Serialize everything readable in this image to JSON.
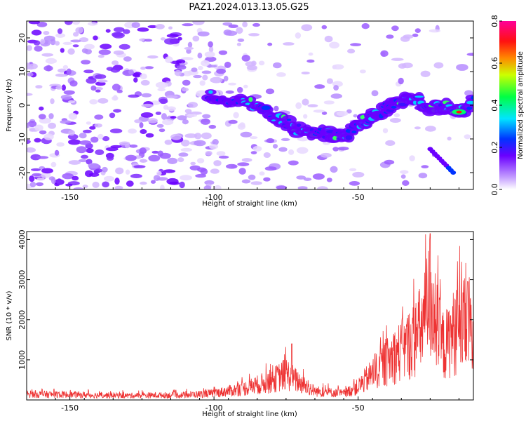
{
  "title": "PAZ1.2024.013.13.05.G25",
  "chart_data": [
    {
      "type": "heatmap",
      "xlabel": "Height of straight line (km)",
      "ylabel": "Frequency (Hz)",
      "xlim": [
        -165,
        -10
      ],
      "ylim": [
        -25,
        25
      ],
      "xticks": [
        -150,
        -100,
        -50
      ],
      "yticks": [
        -20,
        -10,
        0,
        10,
        20
      ],
      "colorbar": {
        "label": "Normalized spectral amplitude",
        "range": [
          0.0,
          0.8
        ],
        "ticks": [
          "0.0",
          "0.2",
          "0.4",
          "0.6",
          "0.8"
        ]
      },
      "ridge": [
        {
          "x": -102,
          "y": 3
        },
        {
          "x": -95,
          "y": 2
        },
        {
          "x": -88,
          "y": 1
        },
        {
          "x": -82,
          "y": -2
        },
        {
          "x": -77,
          "y": -4
        },
        {
          "x": -72,
          "y": -7
        },
        {
          "x": -66,
          "y": -8
        },
        {
          "x": -60,
          "y": -8
        },
        {
          "x": -55,
          "y": -10
        },
        {
          "x": -50,
          "y": -6
        },
        {
          "x": -45,
          "y": -3
        },
        {
          "x": -40,
          "y": -1
        },
        {
          "x": -35,
          "y": 1
        },
        {
          "x": -30,
          "y": 2
        },
        {
          "x": -25,
          "y": -1
        },
        {
          "x": -20,
          "y": 0
        },
        {
          "x": -15,
          "y": -2
        },
        {
          "x": -10,
          "y": 1
        }
      ]
    },
    {
      "type": "line",
      "xlabel": "Height of straight line (km)",
      "ylabel": "SNR (10 * v/v)",
      "xlim": [
        -165,
        -10
      ],
      "ylim": [
        0,
        4200
      ],
      "xticks": [
        -150,
        -100,
        -50
      ],
      "yticks": [
        1000,
        2000,
        3000,
        4000
      ],
      "color": "#ee3333",
      "envelope": [
        {
          "x": -165,
          "y": 200
        },
        {
          "x": -150,
          "y": 180
        },
        {
          "x": -130,
          "y": 150
        },
        {
          "x": -110,
          "y": 170
        },
        {
          "x": -100,
          "y": 230
        },
        {
          "x": -90,
          "y": 380
        },
        {
          "x": -80,
          "y": 650
        },
        {
          "x": -75,
          "y": 900
        },
        {
          "x": -72,
          "y": 700
        },
        {
          "x": -65,
          "y": 300
        },
        {
          "x": -55,
          "y": 220
        },
        {
          "x": -50,
          "y": 450
        },
        {
          "x": -45,
          "y": 900
        },
        {
          "x": -40,
          "y": 1300
        },
        {
          "x": -35,
          "y": 1700
        },
        {
          "x": -30,
          "y": 2100
        },
        {
          "x": -27,
          "y": 2700
        },
        {
          "x": -25,
          "y": 3600
        },
        {
          "x": -22,
          "y": 2200
        },
        {
          "x": -20,
          "y": 1800
        },
        {
          "x": -17,
          "y": 2300
        },
        {
          "x": -14,
          "y": 2500
        },
        {
          "x": -11,
          "y": 2600
        },
        {
          "x": -10,
          "y": 1500
        }
      ],
      "peaks": [
        {
          "x": -25,
          "y": 4150
        },
        {
          "x": -12,
          "y": 2950
        },
        {
          "x": -73,
          "y": 1400
        }
      ]
    }
  ]
}
